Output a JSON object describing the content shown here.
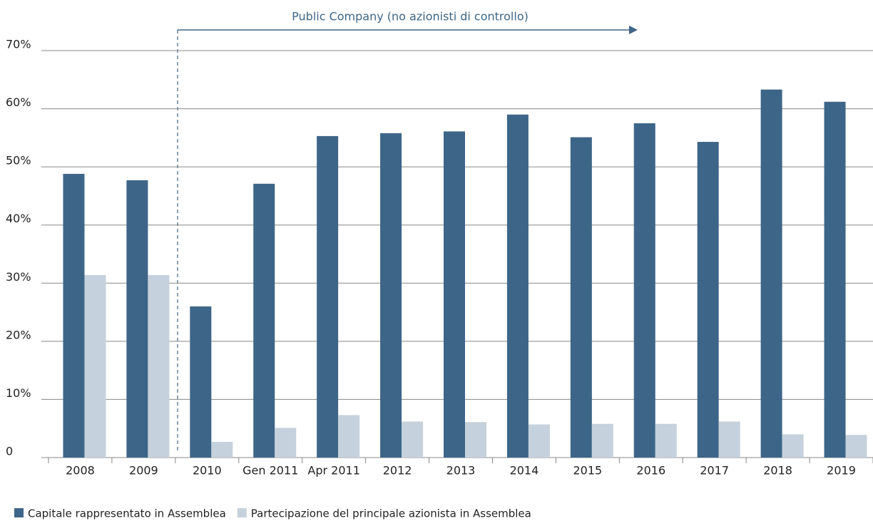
{
  "chart_data": {
    "type": "bar",
    "annotation": "Public Company (no azionisti di controllo)",
    "categories": [
      "2008",
      "2009",
      "2010",
      "Gen 2011",
      "Apr 2011",
      "2012",
      "2013",
      "2014",
      "2015",
      "2016",
      "2017",
      "2018",
      "2019"
    ],
    "series": [
      {
        "name": "Capitale rappresentato in Assemblea",
        "color": "#3d6588",
        "values": [
          48.8,
          47.7,
          26.0,
          47.1,
          55.3,
          55.8,
          56.1,
          59.0,
          55.1,
          57.5,
          54.3,
          63.3,
          61.2
        ]
      },
      {
        "name": "Partecipazione del principale azionista in Assemblea",
        "color": "#c5d1dc",
        "values": [
          31.4,
          31.4,
          2.7,
          5.1,
          7.3,
          6.2,
          6.1,
          5.7,
          5.8,
          5.8,
          6.2,
          4.0,
          3.9
        ]
      }
    ],
    "ylim": [
      0,
      70
    ],
    "yticks": [
      0,
      {
        "value": 10,
        "label": "10%"
      },
      {
        "value": 20,
        "label": "20%"
      },
      {
        "value": 30,
        "label": "30%"
      },
      {
        "value": 40,
        "label": "40%"
      },
      {
        "value": 50,
        "label": "50%"
      },
      {
        "value": 60,
        "label": "60%"
      },
      {
        "value": 70,
        "label": "70%"
      }
    ],
    "grid": true,
    "legend": "bottom-left"
  }
}
